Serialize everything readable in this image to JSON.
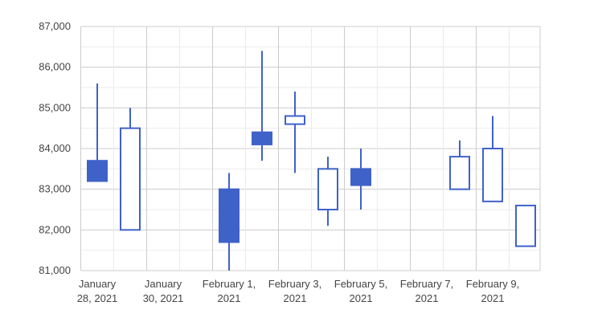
{
  "colors": {
    "candle": "#3f62c8",
    "grid_major": "#cccccc",
    "grid_minor": "#ebebeb",
    "text": "#444444"
  },
  "chart_data": {
    "type": "candlestick",
    "title": "",
    "xlabel": "",
    "ylabel": "",
    "ylim": [
      81000,
      87000
    ],
    "grid": true,
    "yticks": [
      "81,000",
      "82,000",
      "83,000",
      "84,000",
      "85,000",
      "86,000",
      "87,000"
    ],
    "xticks": [
      {
        "line1": "January",
        "line2": "28, 2021"
      },
      {
        "line1": "January",
        "line2": "30, 2021"
      },
      {
        "line1": "February 1,",
        "line2": "2021"
      },
      {
        "line1": "February 3,",
        "line2": "2021"
      },
      {
        "line1": "February 5,",
        "line2": "2021"
      },
      {
        "line1": "February 7,",
        "line2": "2021"
      },
      {
        "line1": "February 9,",
        "line2": "2021"
      }
    ],
    "candles": [
      {
        "date": "2021-01-28",
        "open": 83700,
        "close": 83200,
        "low": 83200,
        "high": 85600
      },
      {
        "date": "2021-01-29",
        "open": 82000,
        "close": 84500,
        "low": 82000,
        "high": 85000
      },
      {
        "date": "2021-02-01",
        "open": 83000,
        "close": 81700,
        "low": 81000,
        "high": 83400
      },
      {
        "date": "2021-02-02",
        "open": 84400,
        "close": 84100,
        "low": 83700,
        "high": 86400
      },
      {
        "date": "2021-02-03",
        "open": 84600,
        "close": 84800,
        "low": 83400,
        "high": 85400
      },
      {
        "date": "2021-02-04",
        "open": 82500,
        "close": 83500,
        "low": 82100,
        "high": 83800
      },
      {
        "date": "2021-02-05",
        "open": 83500,
        "close": 83100,
        "low": 82500,
        "high": 84000
      },
      {
        "date": "2021-02-08",
        "open": 83000,
        "close": 83800,
        "low": 83000,
        "high": 84200
      },
      {
        "date": "2021-02-09",
        "open": 82700,
        "close": 84000,
        "low": 82700,
        "high": 84800
      },
      {
        "date": "2021-02-10",
        "open": 81600,
        "close": 82600,
        "low": 81600,
        "high": 82600
      }
    ]
  }
}
